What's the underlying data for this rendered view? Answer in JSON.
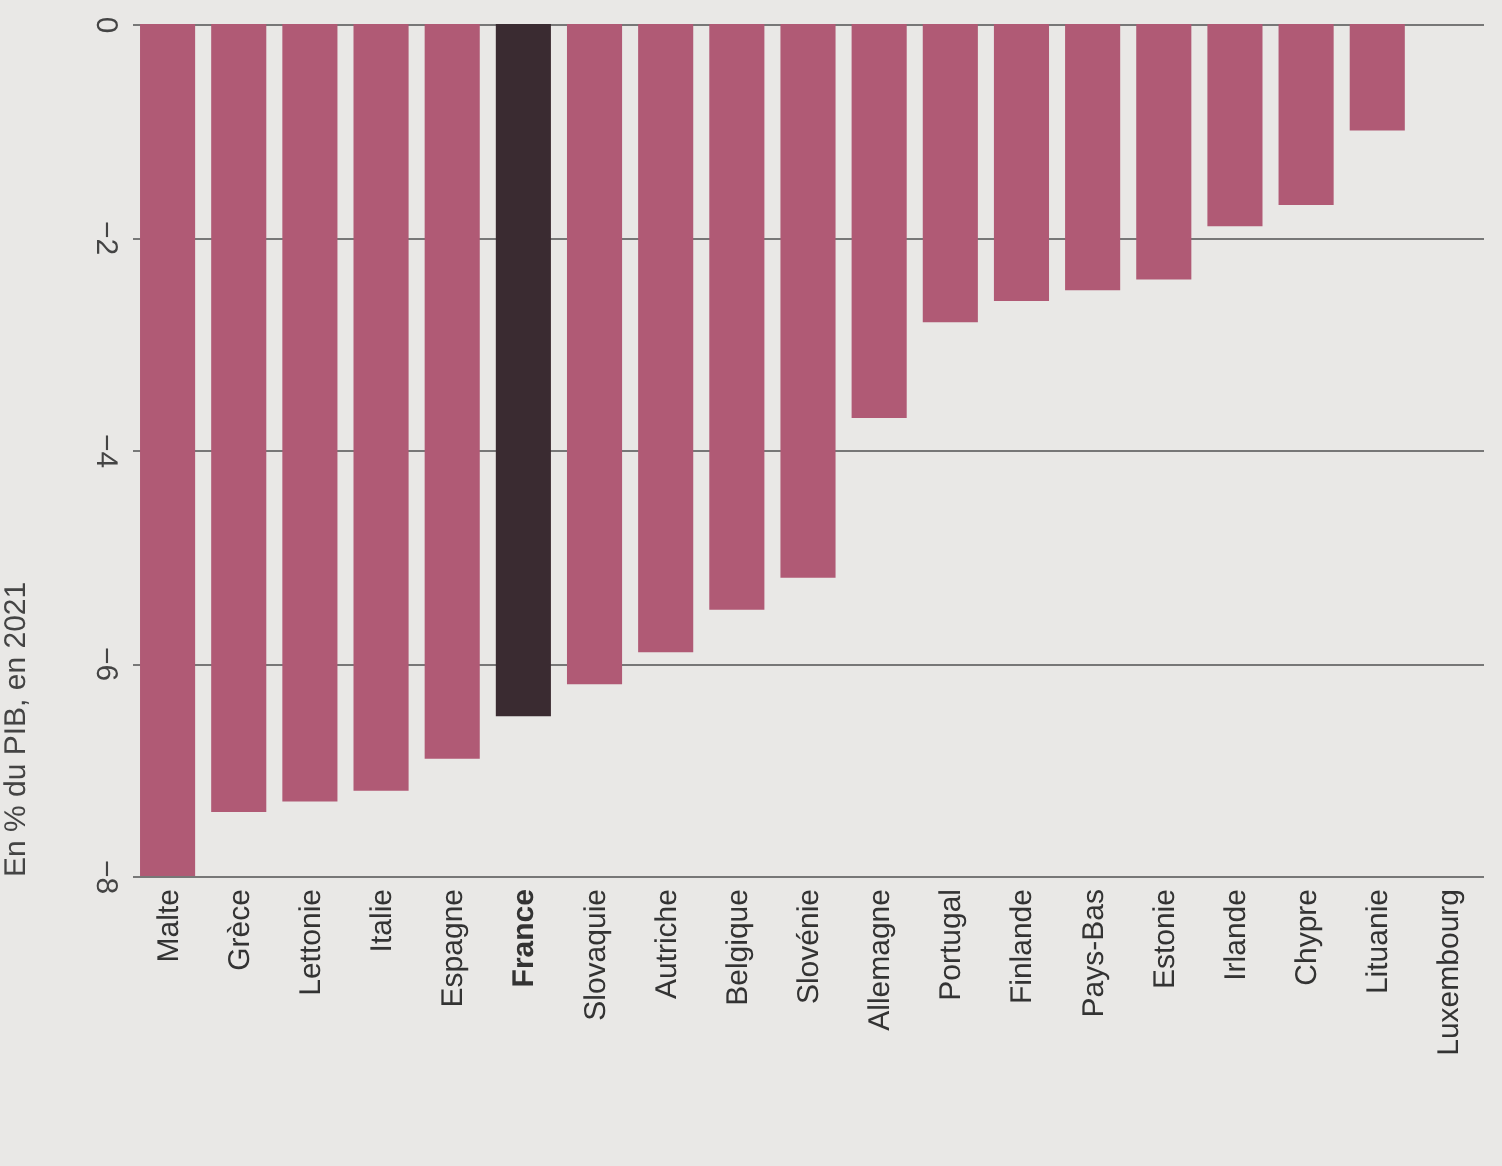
{
  "chart_data": {
    "type": "bar",
    "ylabel": "En % du PIB, en 2021",
    "categories": [
      "Malte",
      "Grèce",
      "Lettonie",
      "Italie",
      "Espagne",
      "France",
      "Slovaquie",
      "Autriche",
      "Belgique",
      "Slovénie",
      "Allemagne",
      "Portugal",
      "Finlande",
      "Pays-Bas",
      "Estonie",
      "Irlande",
      "Chypre",
      "Lituanie",
      "Luxembourg"
    ],
    "values": [
      -8.0,
      -7.4,
      -7.3,
      -7.2,
      -6.9,
      -6.5,
      -6.2,
      -5.9,
      -5.5,
      -5.2,
      -3.7,
      -2.8,
      -2.6,
      -2.5,
      -2.4,
      -1.9,
      -1.7,
      -1.0,
      null
    ],
    "colors": [
      "#b05a75",
      "#b05a75",
      "#b05a75",
      "#b05a75",
      "#b05a75",
      "#3a2b31",
      "#b05a75",
      "#b05a75",
      "#b05a75",
      "#b05a75",
      "#b05a75",
      "#b05a75",
      "#b05a75",
      "#b05a75",
      "#b05a75",
      "#b05a75",
      "#b05a75",
      "#b05a75",
      "#b05a75"
    ],
    "ylim": [
      -8,
      0
    ],
    "yticks": [
      -8,
      -6,
      -4,
      -2,
      0
    ],
    "grid": "y"
  }
}
